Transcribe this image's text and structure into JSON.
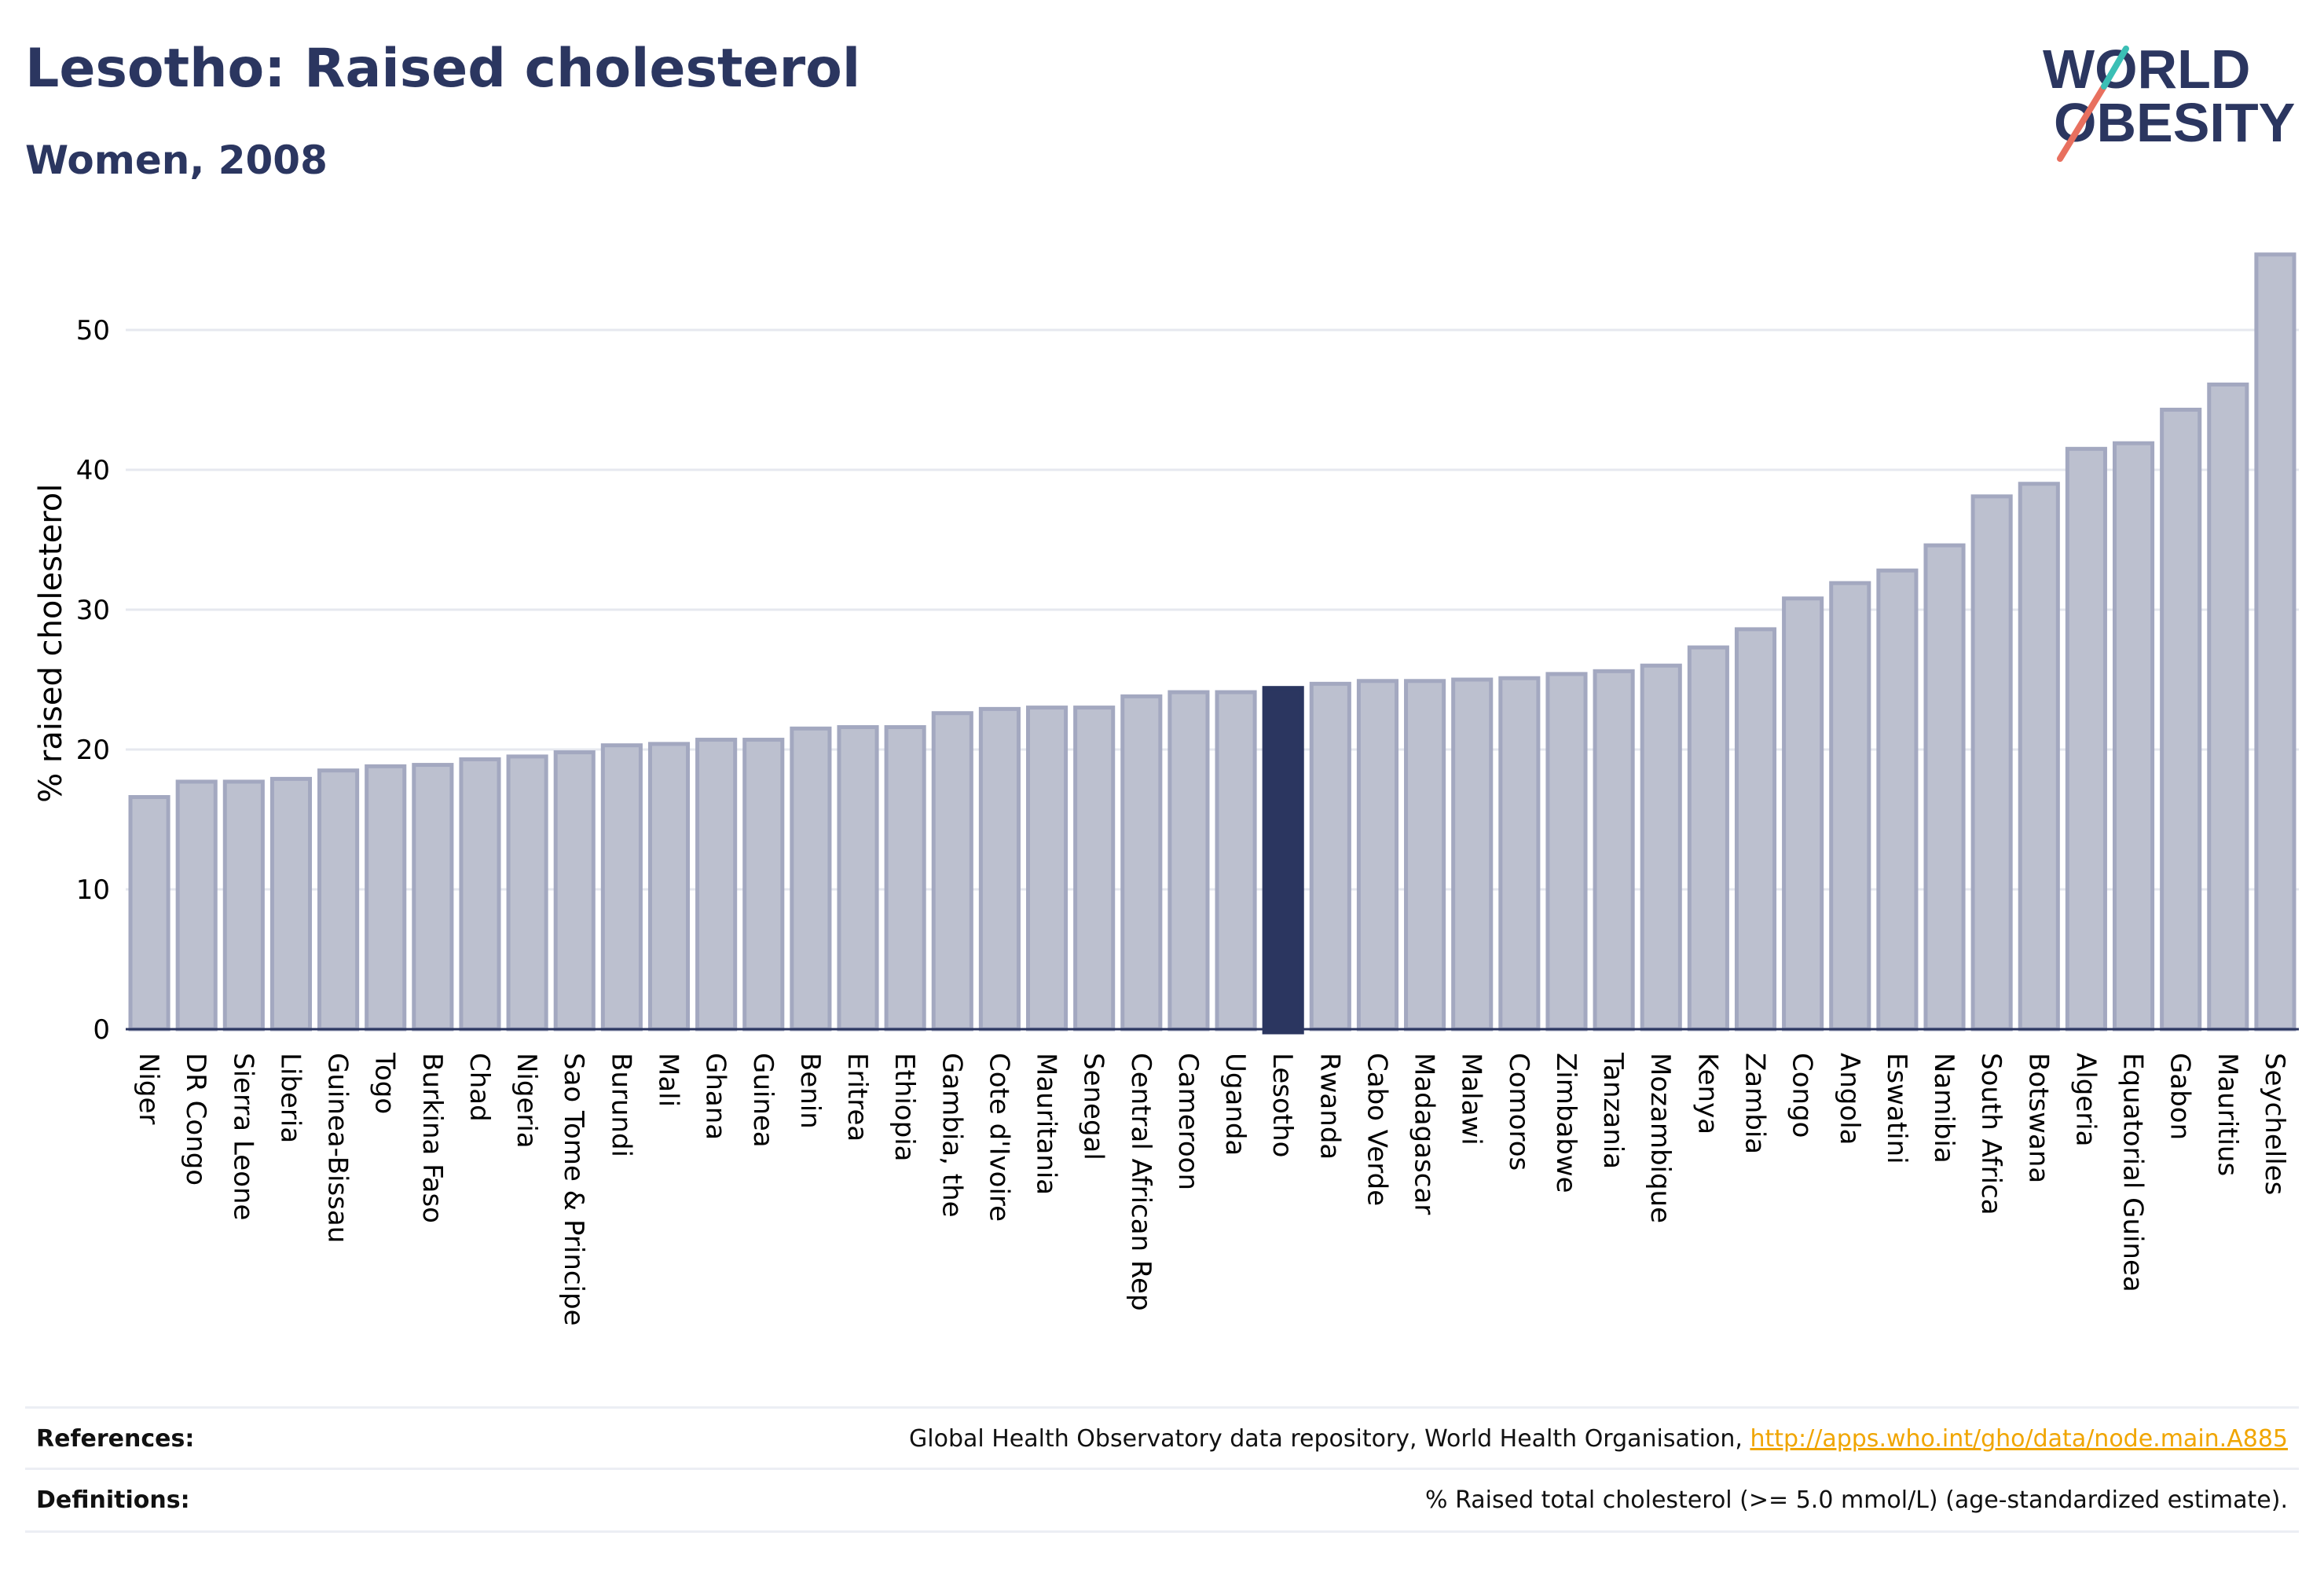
{
  "header": {
    "title": "Lesotho: Raised cholesterol",
    "subtitle": "Women, 2008"
  },
  "logo": {
    "line1": "WORLD",
    "line2": "OBESITY"
  },
  "footer": {
    "references_label": "References:",
    "references_text": "Global Health Observatory data repository, World Health Organisation, ",
    "references_link": "http://apps.who.int/gho/data/node.main.A885",
    "definitions_label": "Definitions:",
    "definitions_text": "% Raised total cholesterol (>= 5.0 mmol/L) (age-standardized estimate)."
  },
  "colors": {
    "bar_fill": "#bcc0cf",
    "bar_stroke": "#a3a8c0",
    "highlight": "#2b3660",
    "grid": "#e6e8ef",
    "logo_slash_red": "#e8705f",
    "logo_slash_teal": "#3bbfb5"
  },
  "chart_data": {
    "type": "bar",
    "title": "",
    "xlabel": "",
    "ylabel": "% raised cholesterol",
    "ylim": [
      0,
      55.5
    ],
    "yticks": [
      0,
      10,
      20,
      30,
      40,
      50
    ],
    "grid": true,
    "highlight": "Lesotho",
    "categories": [
      "Niger",
      "DR Congo",
      "Sierra Leone",
      "Liberia",
      "Guinea-Bissau",
      "Togo",
      "Burkina Faso",
      "Chad",
      "Nigeria",
      "Sao Tome & Principe",
      "Burundi",
      "Mali",
      "Ghana",
      "Guinea",
      "Benin",
      "Eritrea",
      "Ethiopia",
      "Gambia, the",
      "Cote d'Ivoire",
      "Mauritania",
      "Senegal",
      "Central African Rep",
      "Cameroon",
      "Uganda",
      "Lesotho",
      "Rwanda",
      "Cabo Verde",
      "Madagascar",
      "Malawi",
      "Comoros",
      "Zimbabwe",
      "Tanzania",
      "Mozambique",
      "Kenya",
      "Zambia",
      "Congo",
      "Angola",
      "Eswatini",
      "Namibia",
      "South Africa",
      "Botswana",
      "Algeria",
      "Equatorial Guinea",
      "Gabon",
      "Mauritius",
      "Seychelles"
    ],
    "values": [
      16.6,
      17.7,
      17.7,
      17.9,
      18.5,
      18.8,
      18.9,
      19.3,
      19.5,
      19.8,
      20.3,
      20.4,
      20.7,
      20.7,
      21.5,
      21.6,
      21.6,
      22.6,
      22.9,
      23.0,
      23.0,
      23.8,
      24.1,
      24.1,
      24.4,
      24.7,
      24.9,
      24.9,
      25.0,
      25.1,
      25.4,
      25.6,
      26.0,
      27.3,
      28.6,
      30.8,
      31.9,
      32.8,
      34.6,
      38.1,
      39.0,
      41.5,
      41.9,
      44.3,
      46.1,
      55.4
    ]
  }
}
